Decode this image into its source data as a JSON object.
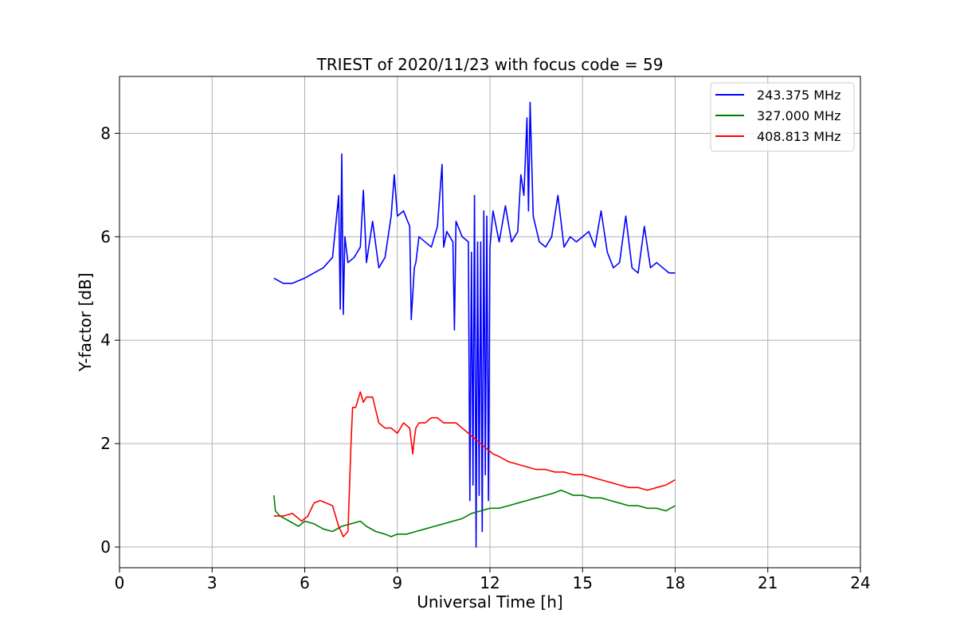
{
  "chart_data": {
    "type": "line",
    "title": "TRIEST of 2020/11/23 with focus code = 59",
    "xlabel": "Universal Time [h]",
    "ylabel": "Y-factor [dB]",
    "xlim": [
      0,
      24
    ],
    "ylim": [
      -0.4,
      9.1
    ],
    "xticks": [
      0,
      3,
      6,
      9,
      12,
      15,
      18,
      21,
      24
    ],
    "yticks": [
      0,
      2,
      4,
      6,
      8
    ],
    "grid": true,
    "legend_position": "top-right",
    "series": [
      {
        "name": "243.375 MHz",
        "color": "#0000ff",
        "x": [
          5.0,
          5.3,
          5.6,
          6.0,
          6.3,
          6.6,
          6.9,
          7.1,
          7.15,
          7.2,
          7.25,
          7.3,
          7.4,
          7.6,
          7.8,
          7.9,
          8.0,
          8.2,
          8.4,
          8.6,
          8.8,
          8.9,
          9.0,
          9.2,
          9.4,
          9.45,
          9.55,
          9.6,
          9.7,
          9.9,
          10.1,
          10.3,
          10.45,
          10.5,
          10.6,
          10.8,
          10.85,
          10.9,
          11.1,
          11.3,
          11.35,
          11.4,
          11.45,
          11.5,
          11.55,
          11.6,
          11.65,
          11.7,
          11.75,
          11.8,
          11.85,
          11.9,
          11.95,
          12.0,
          12.1,
          12.3,
          12.5,
          12.7,
          12.9,
          13.0,
          13.1,
          13.2,
          13.25,
          13.3,
          13.4,
          13.6,
          13.8,
          14.0,
          14.2,
          14.4,
          14.6,
          14.8,
          15.0,
          15.2,
          15.4,
          15.6,
          15.8,
          16.0,
          16.2,
          16.4,
          16.6,
          16.8,
          17.0,
          17.2,
          17.4,
          17.6,
          17.8,
          18.0
        ],
        "y": [
          5.2,
          5.1,
          5.1,
          5.2,
          5.3,
          5.4,
          5.6,
          6.8,
          4.6,
          7.6,
          4.5,
          6.0,
          5.5,
          5.6,
          5.8,
          6.9,
          5.5,
          6.3,
          5.4,
          5.6,
          6.4,
          7.2,
          6.4,
          6.5,
          6.2,
          4.4,
          5.4,
          5.5,
          6.0,
          5.9,
          5.8,
          6.2,
          7.4,
          5.8,
          6.1,
          5.9,
          4.2,
          6.3,
          6.0,
          5.9,
          0.9,
          5.7,
          1.2,
          6.8,
          0.0,
          5.9,
          1.0,
          5.9,
          0.3,
          6.5,
          1.4,
          6.4,
          0.9,
          5.8,
          6.5,
          5.9,
          6.6,
          5.9,
          6.1,
          7.2,
          6.8,
          8.3,
          6.5,
          8.6,
          6.4,
          5.9,
          5.8,
          6.0,
          6.8,
          5.8,
          6.0,
          5.9,
          6.0,
          6.1,
          5.8,
          6.5,
          5.7,
          5.4,
          5.5,
          6.4,
          5.4,
          5.3,
          6.2,
          5.4,
          5.5,
          5.4,
          5.3,
          5.3
        ]
      },
      {
        "name": "327.000 MHz",
        "color": "#008000",
        "x": [
          5.0,
          5.05,
          5.2,
          5.5,
          5.8,
          6.0,
          6.3,
          6.6,
          6.9,
          7.2,
          7.5,
          7.8,
          8.0,
          8.3,
          8.6,
          8.8,
          9.0,
          9.3,
          9.6,
          9.9,
          10.2,
          10.5,
          10.8,
          11.1,
          11.4,
          11.7,
          12.0,
          12.3,
          12.6,
          12.9,
          13.2,
          13.5,
          13.8,
          14.1,
          14.3,
          14.5,
          14.7,
          15.0,
          15.3,
          15.6,
          15.9,
          16.2,
          16.5,
          16.8,
          17.1,
          17.4,
          17.7,
          18.0
        ],
        "y": [
          1.0,
          0.7,
          0.6,
          0.5,
          0.4,
          0.5,
          0.45,
          0.35,
          0.3,
          0.4,
          0.45,
          0.5,
          0.4,
          0.3,
          0.25,
          0.2,
          0.25,
          0.25,
          0.3,
          0.35,
          0.4,
          0.45,
          0.5,
          0.55,
          0.65,
          0.7,
          0.75,
          0.75,
          0.8,
          0.85,
          0.9,
          0.95,
          1.0,
          1.05,
          1.1,
          1.05,
          1.0,
          1.0,
          0.95,
          0.95,
          0.9,
          0.85,
          0.8,
          0.8,
          0.75,
          0.75,
          0.7,
          0.8
        ]
      },
      {
        "name": "408.813 MHz",
        "color": "#ff0000",
        "x": [
          5.0,
          5.3,
          5.6,
          5.9,
          6.1,
          6.3,
          6.5,
          6.7,
          6.9,
          7.1,
          7.25,
          7.4,
          7.5,
          7.55,
          7.65,
          7.8,
          7.9,
          8.0,
          8.2,
          8.4,
          8.6,
          8.8,
          9.0,
          9.2,
          9.4,
          9.5,
          9.55,
          9.6,
          9.7,
          9.9,
          10.1,
          10.3,
          10.5,
          10.7,
          10.9,
          11.1,
          11.3,
          11.5,
          11.7,
          11.9,
          12.1,
          12.3,
          12.6,
          12.9,
          13.2,
          13.5,
          13.8,
          14.1,
          14.4,
          14.7,
          15.0,
          15.3,
          15.6,
          15.9,
          16.2,
          16.5,
          16.8,
          17.1,
          17.4,
          17.7,
          18.0
        ],
        "y": [
          0.6,
          0.6,
          0.65,
          0.5,
          0.6,
          0.85,
          0.9,
          0.85,
          0.8,
          0.4,
          0.2,
          0.3,
          2.0,
          2.7,
          2.7,
          3.0,
          2.8,
          2.9,
          2.9,
          2.4,
          2.3,
          2.3,
          2.2,
          2.4,
          2.3,
          1.8,
          2.1,
          2.3,
          2.4,
          2.4,
          2.5,
          2.5,
          2.4,
          2.4,
          2.4,
          2.3,
          2.2,
          2.1,
          2.0,
          1.9,
          1.8,
          1.75,
          1.65,
          1.6,
          1.55,
          1.5,
          1.5,
          1.45,
          1.45,
          1.4,
          1.4,
          1.35,
          1.3,
          1.25,
          1.2,
          1.15,
          1.15,
          1.1,
          1.15,
          1.2,
          1.3
        ]
      }
    ]
  }
}
